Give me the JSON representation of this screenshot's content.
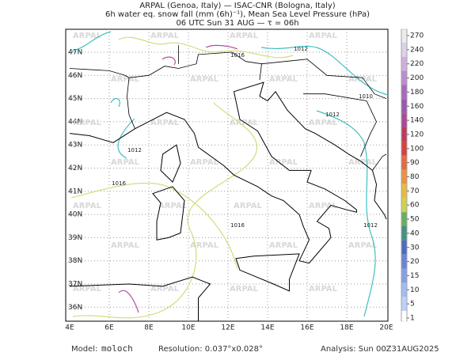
{
  "header": {
    "line1": "ARPAL (Genoa, Italy)  —  ISAC-CNR (Bologna, Italy)",
    "line2": "6h water eq. snow fall (mm (6h)⁻¹), Mean Sea Level Pressure (hPa)",
    "line3": "06 UTC Sun 31 AUG  —  τ = 06h"
  },
  "map": {
    "lon_labels": [
      "4E",
      "6E",
      "8E",
      "10E",
      "12E",
      "14E",
      "16E",
      "18E",
      "20E"
    ],
    "lat_labels": [
      "47N",
      "46N",
      "45N",
      "44N",
      "43N",
      "42N",
      "41N",
      "40N",
      "39N",
      "38N",
      "37N",
      "36N"
    ],
    "watermark": "ARPAL",
    "isobar_labels": [
      "1016",
      "1016",
      "1012",
      "1010",
      "1012",
      "1012",
      "1016",
      "1012"
    ]
  },
  "colorbar": {
    "labels": [
      "270",
      "240",
      "220",
      "200",
      "180",
      "160",
      "140",
      "120",
      "100",
      "90",
      "80",
      "70",
      "60",
      "50",
      "40",
      "30",
      "20",
      "15",
      "10",
      "5",
      "1"
    ],
    "colors": [
      "#e8e8e8",
      "#d8c8e8",
      "#c8a0d8",
      "#b078c8",
      "#9850b0",
      "#8a3aa0",
      "#a02880",
      "#b01840",
      "#d02020",
      "#e05020",
      "#e88020",
      "#e0b020",
      "#c8c830",
      "#50a040",
      "#208070",
      "#3050b0",
      "#5070d0",
      "#7090e0",
      "#90b0f0",
      "#b0c8f8",
      "#ffffff"
    ]
  },
  "footer": {
    "model_label": "Model:",
    "model": "moloch",
    "resolution": "Resolution: 0.037°x0.028°",
    "analysis": "Analysis: Sun 00Z31AUG2025"
  }
}
